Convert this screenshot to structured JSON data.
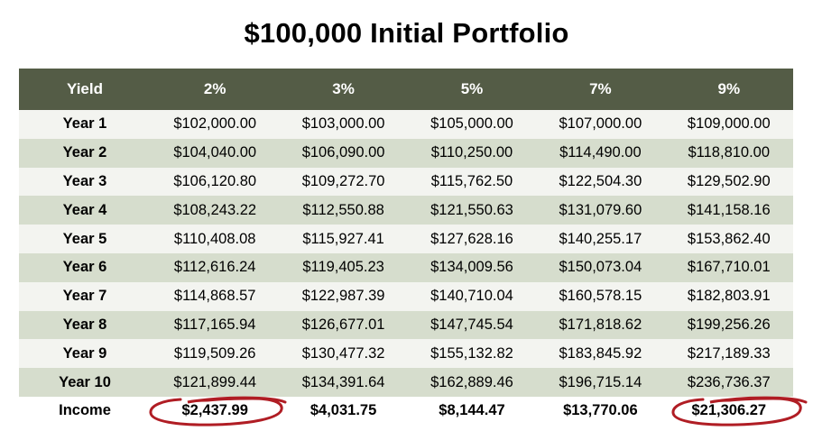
{
  "title": "$100,000 Initial Portfolio",
  "colors": {
    "header_bg": "#545c46",
    "row_even_bg": "#f3f4f0",
    "row_odd_bg": "#d6ddcd",
    "income_bg": "#ffffff",
    "circle": "#b01d24"
  },
  "table": {
    "headers": [
      "Yield",
      "2%",
      "3%",
      "5%",
      "7%",
      "9%"
    ],
    "rows": [
      {
        "label": "Year 1",
        "values": [
          "$102,000.00",
          "$103,000.00",
          "$105,000.00",
          "$107,000.00",
          "$109,000.00"
        ]
      },
      {
        "label": "Year 2",
        "values": [
          "$104,040.00",
          "$106,090.00",
          "$110,250.00",
          "$114,490.00",
          "$118,810.00"
        ]
      },
      {
        "label": "Year 3",
        "values": [
          "$106,120.80",
          "$109,272.70",
          "$115,762.50",
          "$122,504.30",
          "$129,502.90"
        ]
      },
      {
        "label": "Year 4",
        "values": [
          "$108,243.22",
          "$112,550.88",
          "$121,550.63",
          "$131,079.60",
          "$141,158.16"
        ]
      },
      {
        "label": "Year 5",
        "values": [
          "$110,408.08",
          "$115,927.41",
          "$127,628.16",
          "$140,255.17",
          "$153,862.40"
        ]
      },
      {
        "label": "Year 6",
        "values": [
          "$112,616.24",
          "$119,405.23",
          "$134,009.56",
          "$150,073.04",
          "$167,710.01"
        ]
      },
      {
        "label": "Year 7",
        "values": [
          "$114,868.57",
          "$122,987.39",
          "$140,710.04",
          "$160,578.15",
          "$182,803.91"
        ]
      },
      {
        "label": "Year 8",
        "values": [
          "$117,165.94",
          "$126,677.01",
          "$147,745.54",
          "$171,818.62",
          "$199,256.26"
        ]
      },
      {
        "label": "Year 9",
        "values": [
          "$119,509.26",
          "$130,477.32",
          "$155,132.82",
          "$183,845.92",
          "$217,189.33"
        ]
      },
      {
        "label": "Year 10",
        "values": [
          "$121,899.44",
          "$134,391.64",
          "$162,889.46",
          "$196,715.14",
          "$236,736.37"
        ]
      }
    ],
    "income": {
      "label": "Income",
      "values": [
        "$2,437.99",
        "$4,031.75",
        "$8,144.47",
        "$13,770.06",
        "$21,306.27"
      ]
    }
  }
}
